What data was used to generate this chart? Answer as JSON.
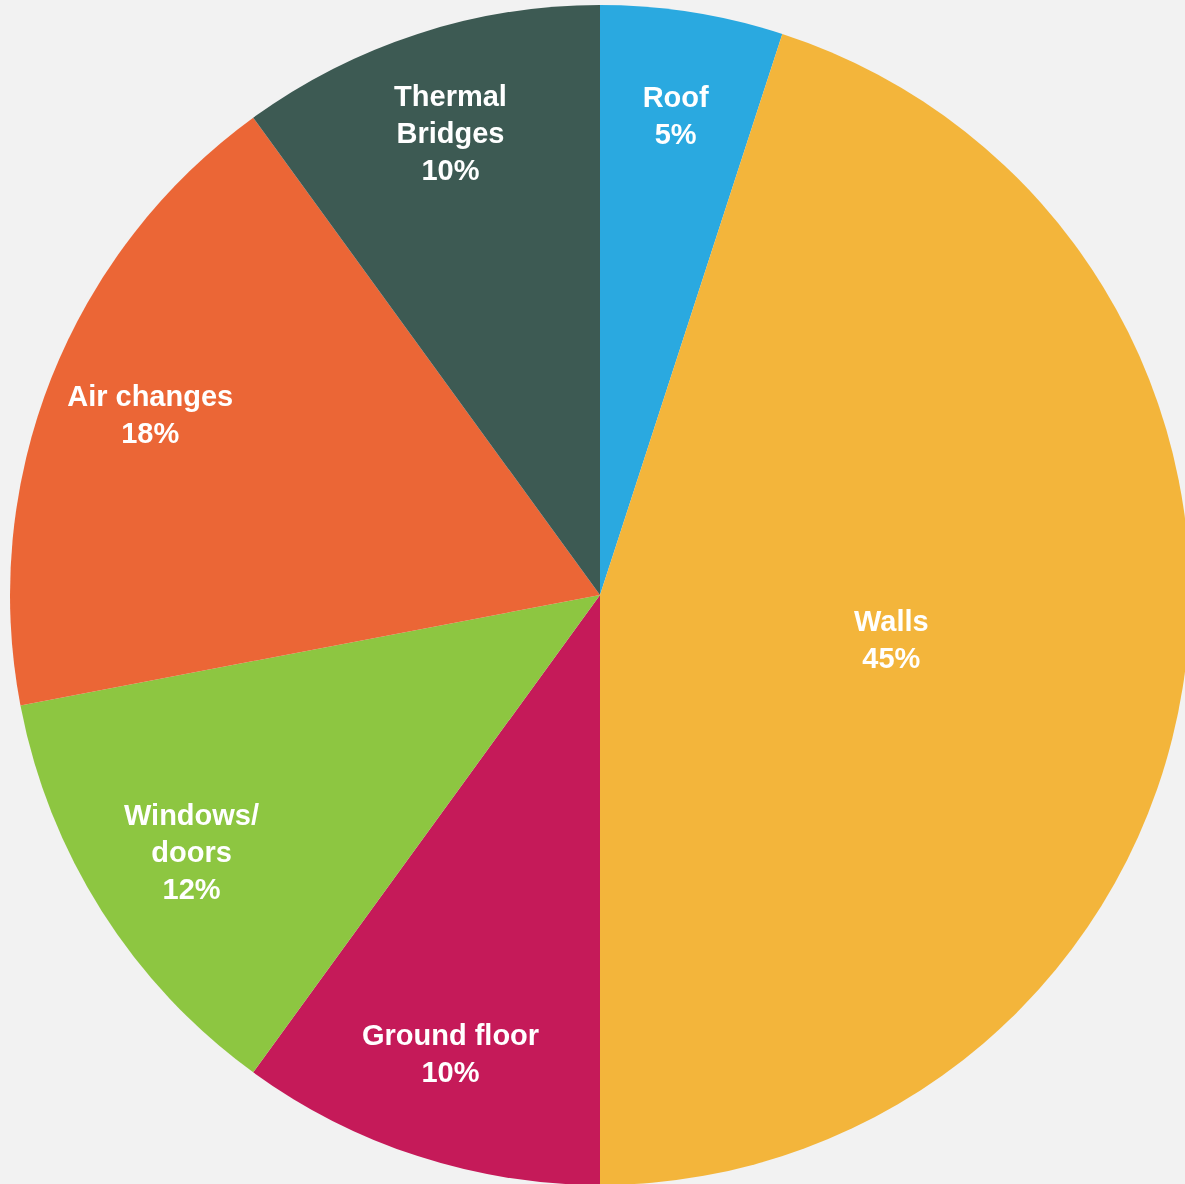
{
  "chart_data": {
    "type": "pie",
    "categories": [
      "Roof",
      "Walls",
      "Ground floor",
      "Windows/doors",
      "Air changes",
      "Thermal Bridges"
    ],
    "values": [
      5,
      45,
      10,
      12,
      18,
      10
    ],
    "colors": [
      "#2aa9e0",
      "#f3b53b",
      "#c51a59",
      "#8dc641",
      "#eb6636",
      "#3d5a53"
    ],
    "value_labels": [
      "5%",
      "45%",
      "10%",
      "12%",
      "18%",
      "10%"
    ]
  }
}
